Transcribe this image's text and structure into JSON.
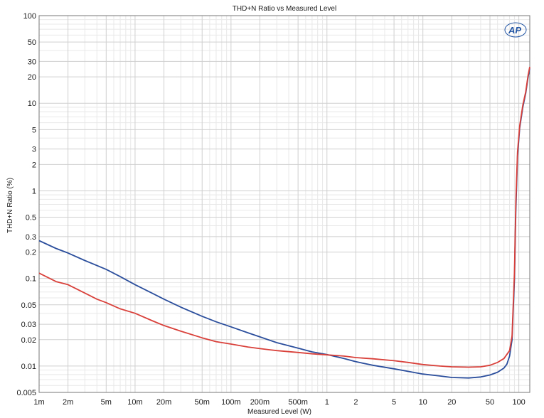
{
  "chart_data": {
    "type": "line",
    "title": "THD+N Ratio vs Measured Level",
    "xlabel": "Measured Level (W)",
    "ylabel": "THD+N Ratio (%)",
    "xscale": "log",
    "yscale": "log",
    "xlim": [
      0.001,
      130
    ],
    "ylim": [
      0.005,
      100
    ],
    "grid": true,
    "logo": "AP",
    "x_tick_labels": [
      {
        "v": 0.001,
        "label": "1m"
      },
      {
        "v": 0.002,
        "label": "2m"
      },
      {
        "v": 0.005,
        "label": "5m"
      },
      {
        "v": 0.01,
        "label": "10m"
      },
      {
        "v": 0.02,
        "label": "20m"
      },
      {
        "v": 0.05,
        "label": "50m"
      },
      {
        "v": 0.1,
        "label": "100m"
      },
      {
        "v": 0.2,
        "label": "200m"
      },
      {
        "v": 0.5,
        "label": "500m"
      },
      {
        "v": 1,
        "label": "1"
      },
      {
        "v": 2,
        "label": "2"
      },
      {
        "v": 5,
        "label": "5"
      },
      {
        "v": 10,
        "label": "10"
      },
      {
        "v": 20,
        "label": "20"
      },
      {
        "v": 50,
        "label": "50"
      },
      {
        "v": 100,
        "label": "100"
      }
    ],
    "y_tick_labels": [
      {
        "v": 100,
        "label": "100"
      },
      {
        "v": 50,
        "label": "50"
      },
      {
        "v": 30,
        "label": "30"
      },
      {
        "v": 20,
        "label": "20"
      },
      {
        "v": 10,
        "label": "10"
      },
      {
        "v": 5,
        "label": "5"
      },
      {
        "v": 3,
        "label": "3"
      },
      {
        "v": 2,
        "label": "2"
      },
      {
        "v": 1,
        "label": "1"
      },
      {
        "v": 0.5,
        "label": "0.5"
      },
      {
        "v": 0.3,
        "label": "0.3"
      },
      {
        "v": 0.2,
        "label": "0.2"
      },
      {
        "v": 0.1,
        "label": "0.1"
      },
      {
        "v": 0.05,
        "label": "0.05"
      },
      {
        "v": 0.03,
        "label": "0.03"
      },
      {
        "v": 0.02,
        "label": "0.02"
      },
      {
        "v": 0.01,
        "label": "0.01"
      },
      {
        "v": 0.005,
        "label": "0.005"
      }
    ],
    "series": [
      {
        "color": "#2b4e9c",
        "points": [
          [
            0.001,
            0.27
          ],
          [
            0.0015,
            0.22
          ],
          [
            0.002,
            0.195
          ],
          [
            0.003,
            0.16
          ],
          [
            0.005,
            0.127
          ],
          [
            0.007,
            0.105
          ],
          [
            0.01,
            0.085
          ],
          [
            0.015,
            0.068
          ],
          [
            0.02,
            0.058
          ],
          [
            0.03,
            0.047
          ],
          [
            0.05,
            0.037
          ],
          [
            0.07,
            0.032
          ],
          [
            0.1,
            0.028
          ],
          [
            0.15,
            0.024
          ],
          [
            0.2,
            0.0215
          ],
          [
            0.3,
            0.0185
          ],
          [
            0.5,
            0.016
          ],
          [
            0.7,
            0.0145
          ],
          [
            1,
            0.0135
          ],
          [
            1.5,
            0.0122
          ],
          [
            2,
            0.0112
          ],
          [
            3,
            0.0102
          ],
          [
            5,
            0.0093
          ],
          [
            7,
            0.0087
          ],
          [
            10,
            0.0081
          ],
          [
            15,
            0.0077
          ],
          [
            20,
            0.0074
          ],
          [
            30,
            0.0073
          ],
          [
            40,
            0.0075
          ],
          [
            50,
            0.0079
          ],
          [
            60,
            0.0085
          ],
          [
            70,
            0.0095
          ],
          [
            75,
            0.0105
          ],
          [
            80,
            0.013
          ],
          [
            85,
            0.02
          ],
          [
            90,
            0.1
          ],
          [
            93,
            0.6
          ],
          [
            97,
            2.5
          ],
          [
            102,
            5.2
          ],
          [
            110,
            9
          ],
          [
            118,
            13
          ],
          [
            125,
            20
          ],
          [
            130,
            25
          ]
        ]
      },
      {
        "color": "#d9403a",
        "points": [
          [
            0.001,
            0.115
          ],
          [
            0.0015,
            0.092
          ],
          [
            0.002,
            0.085
          ],
          [
            0.003,
            0.068
          ],
          [
            0.004,
            0.058
          ],
          [
            0.005,
            0.053
          ],
          [
            0.007,
            0.045
          ],
          [
            0.01,
            0.04
          ],
          [
            0.015,
            0.033
          ],
          [
            0.02,
            0.029
          ],
          [
            0.03,
            0.025
          ],
          [
            0.05,
            0.021
          ],
          [
            0.07,
            0.019
          ],
          [
            0.1,
            0.0178
          ],
          [
            0.15,
            0.0165
          ],
          [
            0.2,
            0.0158
          ],
          [
            0.3,
            0.015
          ],
          [
            0.5,
            0.0143
          ],
          [
            0.7,
            0.0138
          ],
          [
            1,
            0.0134
          ],
          [
            1.5,
            0.013
          ],
          [
            2,
            0.0125
          ],
          [
            3,
            0.0121
          ],
          [
            5,
            0.0115
          ],
          [
            7,
            0.011
          ],
          [
            10,
            0.0104
          ],
          [
            15,
            0.01
          ],
          [
            20,
            0.0098
          ],
          [
            30,
            0.0097
          ],
          [
            40,
            0.0098
          ],
          [
            50,
            0.0102
          ],
          [
            60,
            0.011
          ],
          [
            70,
            0.0122
          ],
          [
            80,
            0.015
          ],
          [
            85,
            0.022
          ],
          [
            90,
            0.12
          ],
          [
            93,
            0.75
          ],
          [
            97,
            2.8
          ],
          [
            102,
            5.5
          ],
          [
            110,
            9.5
          ],
          [
            118,
            13.5
          ],
          [
            125,
            21
          ],
          [
            130,
            26
          ]
        ]
      }
    ]
  }
}
